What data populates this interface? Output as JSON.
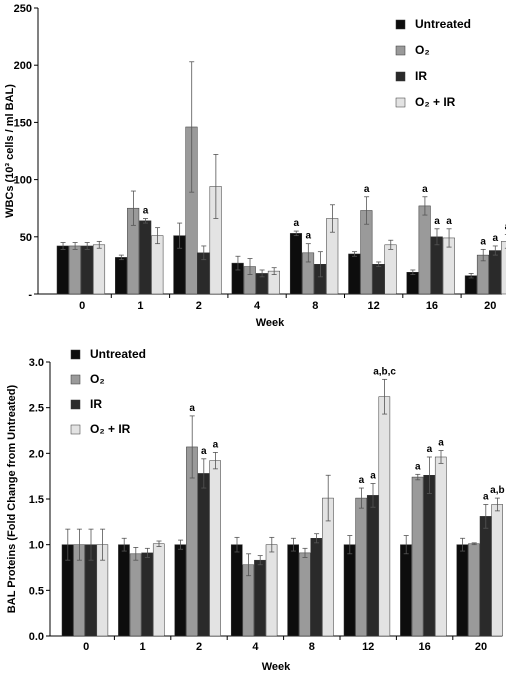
{
  "colors": {
    "untreated": "#0d0d0d",
    "o2": "#9a9a9a",
    "ir": "#2a2a2a",
    "o2_ir": "#e3e3e3"
  },
  "chart_data": [
    {
      "type": "bar",
      "categories": [
        "0",
        "1",
        "2",
        "4",
        "8",
        "12",
        "16",
        "20"
      ],
      "xlabel": "Week",
      "ylabel": "WBCs (10³ cells / ml BAL)",
      "ylim": [
        0,
        250
      ],
      "yticks": [
        "-",
        "50",
        "100",
        "150",
        "200",
        "250"
      ],
      "grid": false,
      "legend_position": "top-right",
      "series": [
        {
          "name": "Untreated",
          "values": [
            42,
            32,
            51,
            27,
            53,
            35,
            19,
            16
          ],
          "errors": [
            3,
            2,
            11,
            6,
            2,
            2,
            2,
            2
          ]
        },
        {
          "name": "O₂",
          "values": [
            42,
            75,
            146,
            24,
            36,
            73,
            77,
            34
          ],
          "errors": [
            3,
            15,
            57,
            7,
            8,
            12,
            8,
            5
          ]
        },
        {
          "name": "IR",
          "values": [
            42,
            64,
            36,
            18,
            26,
            26,
            50,
            38
          ],
          "errors": [
            3,
            2,
            6,
            3,
            11,
            2,
            7,
            4
          ]
        },
        {
          "name": "O₂ + IR",
          "values": [
            43,
            51,
            94,
            20,
            66,
            43,
            49,
            46
          ],
          "errors": [
            3,
            7,
            28,
            3,
            12,
            4,
            8,
            6
          ]
        }
      ],
      "annotations": [
        {
          "category": "1",
          "series": "IR",
          "text": "a"
        },
        {
          "category": "8",
          "series": "Untreated",
          "text": "a"
        },
        {
          "category": "8",
          "series": "O₂",
          "text": "a"
        },
        {
          "category": "12",
          "series": "O₂",
          "text": "a"
        },
        {
          "category": "16",
          "series": "O₂",
          "text": "a"
        },
        {
          "category": "16",
          "series": "IR",
          "text": "a"
        },
        {
          "category": "16",
          "series": "O₂ + IR",
          "text": "a"
        },
        {
          "category": "20",
          "series": "O₂",
          "text": "a"
        },
        {
          "category": "20",
          "series": "IR",
          "text": "a"
        },
        {
          "category": "20",
          "series": "O₂ + IR",
          "text": "a"
        }
      ]
    },
    {
      "type": "bar",
      "categories": [
        "0",
        "1",
        "2",
        "4",
        "8",
        "12",
        "16",
        "20"
      ],
      "xlabel": "Week",
      "ylabel": "BAL Proteins (Fold Change from Untreated)",
      "ylim": [
        0,
        3
      ],
      "yticks": [
        "0.0",
        "0.5",
        "1.0",
        "1.5",
        "2.0",
        "2.5",
        "3.0"
      ],
      "grid": false,
      "legend_position": "top-left",
      "series": [
        {
          "name": "Untreated",
          "values": [
            1.0,
            1.0,
            1.0,
            1.0,
            1.0,
            1.0,
            1.0,
            1.0
          ],
          "errors": [
            0.17,
            0.07,
            0.05,
            0.08,
            0.07,
            0.1,
            0.1,
            0.07
          ]
        },
        {
          "name": "O₂",
          "values": [
            1.0,
            0.9,
            2.07,
            0.78,
            0.91,
            1.51,
            1.74,
            1.01
          ],
          "errors": [
            0.17,
            0.07,
            0.34,
            0.12,
            0.05,
            0.11,
            0.03,
            0.01
          ]
        },
        {
          "name": "IR",
          "values": [
            1.0,
            0.91,
            1.78,
            0.83,
            1.07,
            1.54,
            1.76,
            1.31
          ],
          "errors": [
            0.17,
            0.05,
            0.16,
            0.05,
            0.05,
            0.13,
            0.2,
            0.13
          ]
        },
        {
          "name": "O₂ + IR",
          "values": [
            1.0,
            1.01,
            1.92,
            1.0,
            1.51,
            2.62,
            1.96,
            1.44
          ],
          "errors": [
            0.17,
            0.03,
            0.09,
            0.08,
            0.25,
            0.19,
            0.07,
            0.07
          ]
        }
      ],
      "annotations": [
        {
          "category": "2",
          "series": "O₂",
          "text": "a"
        },
        {
          "category": "2",
          "series": "IR",
          "text": "a"
        },
        {
          "category": "2",
          "series": "O₂ + IR",
          "text": "a"
        },
        {
          "category": "12",
          "series": "O₂",
          "text": "a"
        },
        {
          "category": "12",
          "series": "IR",
          "text": "a"
        },
        {
          "category": "12",
          "series": "O₂ + IR",
          "text": "a,b,c"
        },
        {
          "category": "16",
          "series": "O₂",
          "text": "a"
        },
        {
          "category": "16",
          "series": "IR",
          "text": "a"
        },
        {
          "category": "16",
          "series": "O₂ + IR",
          "text": "a"
        },
        {
          "category": "20",
          "series": "IR",
          "text": "a"
        },
        {
          "category": "20",
          "series": "O₂ + IR",
          "text": "a,b"
        }
      ]
    }
  ]
}
